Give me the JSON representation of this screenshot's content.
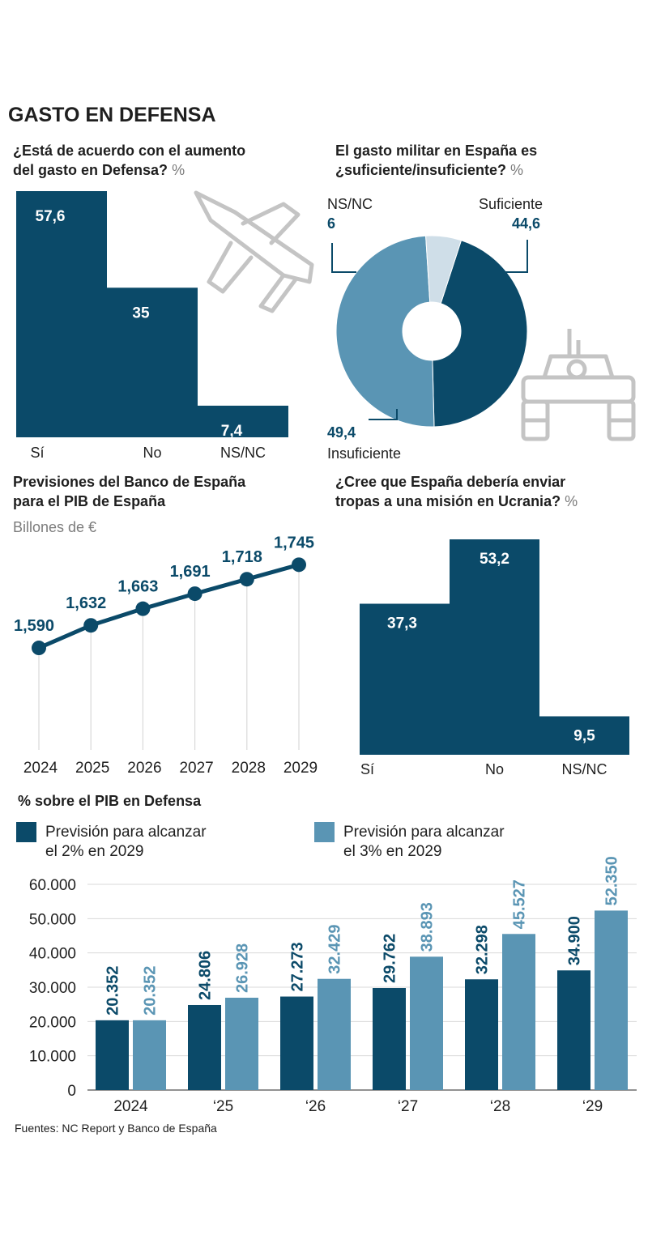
{
  "page": {
    "title": "GASTO EN DEFENSA",
    "source": "Fuentes: NC Report y Banco de España"
  },
  "colors": {
    "dark": "#0b4a69",
    "mid": "#5a95b4",
    "light": "#cfdee8",
    "icon": "#c4c4c4",
    "text": "#1f1f1f",
    "muted": "#7c7c7c",
    "grid": "#d9d9d9"
  },
  "chart_data": [
    {
      "id": "acuerdo",
      "type": "bar",
      "title_lines": [
        "¿Está de acuerdo con el aumento",
        "del gasto en Defensa?"
      ],
      "unit": "%",
      "categories": [
        "Sí",
        "No",
        "NS/NC"
      ],
      "values": [
        57.6,
        35,
        7.4
      ],
      "value_labels": [
        "57,6",
        "35",
        "7,4"
      ],
      "ylim": [
        0,
        57.6
      ],
      "icon": "fighter-jet-icon"
    },
    {
      "id": "suficiencia",
      "type": "pie",
      "title_lines": [
        "El gasto militar en España es",
        "¿suficiente/insuficiente?"
      ],
      "unit": "%",
      "slices": [
        {
          "key": "suficiente",
          "label": "Suficiente",
          "value": 44.6,
          "value_label": "44,6"
        },
        {
          "key": "insuficiente",
          "label": "Insuficiente",
          "value": 49.4,
          "value_label": "49,4"
        },
        {
          "key": "nsnc",
          "label": "NS/NC",
          "value": 6,
          "value_label": "6"
        }
      ],
      "icon": "tank-icon"
    },
    {
      "id": "pib",
      "type": "line",
      "title_lines": [
        "Previsiones del Banco de España",
        "para el PIB de España"
      ],
      "subtitle": "Billones de €",
      "x": [
        "2024",
        "2025",
        "2026",
        "2027",
        "2028",
        "2029"
      ],
      "values": [
        1.59,
        1.632,
        1.663,
        1.691,
        1.718,
        1.745
      ],
      "value_labels": [
        "1,590",
        "1,632",
        "1,663",
        "1,691",
        "1,718",
        "1,745"
      ],
      "ylim": [
        1.4,
        1.75
      ]
    },
    {
      "id": "tropas",
      "type": "bar",
      "title_lines": [
        "¿Cree que España debería enviar",
        "tropas a una misión en Ucrania?"
      ],
      "unit": "%",
      "categories": [
        "Sí",
        "No",
        "NS/NC"
      ],
      "values": [
        37.3,
        53.2,
        9.5
      ],
      "value_labels": [
        "37,3",
        "53,2",
        "9,5"
      ],
      "ylim": [
        0,
        53.2
      ]
    },
    {
      "id": "defensa",
      "type": "bar",
      "title": "% sobre el PIB en Defensa",
      "categories": [
        "2024",
        "‘25",
        "‘26",
        "‘27",
        "‘28",
        "‘29"
      ],
      "series": [
        {
          "name_lines": [
            "Previsión para alcanzar",
            "el 2% en 2029"
          ],
          "values": [
            20352,
            24806,
            27273,
            29762,
            32298,
            34900
          ],
          "value_labels": [
            "20.352",
            "24.806",
            "27.273",
            "29.762",
            "32.298",
            "34.900"
          ]
        },
        {
          "name_lines": [
            "Previsión para alcanzar",
            "el 3% en 2029"
          ],
          "values": [
            20352,
            26928,
            32429,
            38893,
            45527,
            52350
          ],
          "value_labels": [
            "20.352",
            "26.928",
            "32.429",
            "38.893",
            "45.527",
            "52.350"
          ]
        }
      ],
      "yticks": [
        0,
        10000,
        20000,
        30000,
        40000,
        50000,
        60000
      ],
      "ytick_labels": [
        "0",
        "10.000",
        "20.000",
        "30.000",
        "40.000",
        "50.000",
        "60.000"
      ],
      "ylim": [
        0,
        60000
      ],
      "grid": true
    }
  ]
}
